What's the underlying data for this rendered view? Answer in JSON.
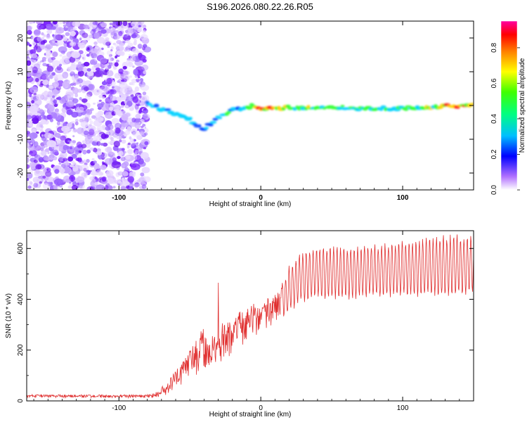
{
  "title": "S196.2026.080.22.26.R05",
  "colors": {
    "snr_line": "#e03030",
    "axis": "#000000",
    "ridge_stops": [
      "#7a00ff",
      "#0000ff",
      "#00bfff",
      "#00ff40",
      "#ffff00",
      "#ff0000"
    ]
  },
  "chart_data": [
    {
      "type": "heatmap",
      "name": "spectrogram",
      "xlabel": "Height of straight line (km)",
      "ylabel": "Frequency (Hz)",
      "xlim": [
        -165,
        150
      ],
      "ylim": [
        -25,
        25
      ],
      "xticks": [
        -100,
        0,
        100
      ],
      "xtick_labels": [
        "-100",
        "0",
        "100"
      ],
      "yticks": [
        -20,
        -10,
        0,
        10,
        20
      ],
      "ytick_labels": [
        "-20",
        "-10",
        "0",
        "10",
        "20"
      ],
      "colorbar": {
        "label": "Normalized spectral amplitude",
        "range": [
          0,
          0.95
        ],
        "ticks": [
          0,
          0.2,
          0.4,
          0.6,
          0.8
        ],
        "tick_labels": [
          "0.0",
          "0.2",
          "0.4",
          "0.6",
          "0.8"
        ]
      },
      "noise_region": {
        "x_from": -165,
        "x_to": -80,
        "freq_from": -25,
        "freq_to": 25,
        "amplitude": 0.1
      },
      "ridge": {
        "x": [
          -80,
          -70,
          -60,
          -50,
          -45,
          -40,
          -35,
          -30,
          -25,
          -20,
          -15,
          -10,
          -5,
          0,
          10,
          20,
          40,
          60,
          80,
          100,
          120,
          140,
          150
        ],
        "freq": [
          0.5,
          -1.0,
          -2.5,
          -4.0,
          -6.0,
          -7.0,
          -5.5,
          -3.5,
          -2.5,
          -1.5,
          -1.0,
          -0.5,
          0.0,
          -1.2,
          -0.8,
          -0.6,
          -0.6,
          -0.6,
          -1.0,
          -0.8,
          -0.5,
          0.0,
          0.3
        ],
        "amplitude": [
          0.35,
          0.45,
          0.4,
          0.4,
          0.35,
          0.3,
          0.35,
          0.45,
          0.5,
          0.45,
          0.4,
          0.5,
          0.6,
          0.85,
          0.75,
          0.6,
          0.6,
          0.55,
          0.5,
          0.55,
          0.6,
          0.9,
          0.6
        ]
      }
    },
    {
      "type": "line",
      "name": "snr",
      "xlabel": "Height of straight line (km)",
      "ylabel": "SNR (10 * v/v)",
      "xlim": [
        -165,
        150
      ],
      "ylim": [
        0,
        670
      ],
      "xticks": [
        -100,
        0,
        100
      ],
      "xtick_labels": [
        "-100",
        "0",
        "100"
      ],
      "yticks": [
        0,
        200,
        400,
        600
      ],
      "ytick_labels": [
        "0",
        "200",
        "400",
        "600"
      ],
      "envelope": {
        "x": [
          -165,
          -80,
          -75,
          -65,
          -55,
          -45,
          -40,
          -35,
          -30,
          -20,
          -10,
          0,
          10,
          18,
          20,
          25,
          30,
          40,
          60,
          80,
          100,
          120,
          140,
          150
        ],
        "lower": [
          12,
          12,
          12,
          25,
          60,
          100,
          130,
          80,
          150,
          180,
          230,
          260,
          310,
          330,
          340,
          370,
          390,
          400,
          400,
          405,
          405,
          410,
          410,
          420
        ],
        "upper": [
          25,
          25,
          30,
          80,
          170,
          260,
          290,
          260,
          300,
          330,
          370,
          400,
          420,
          500,
          530,
          570,
          590,
          610,
          610,
          620,
          630,
          650,
          660,
          650
        ]
      },
      "spike": {
        "x": -30,
        "y": 465
      }
    }
  ]
}
